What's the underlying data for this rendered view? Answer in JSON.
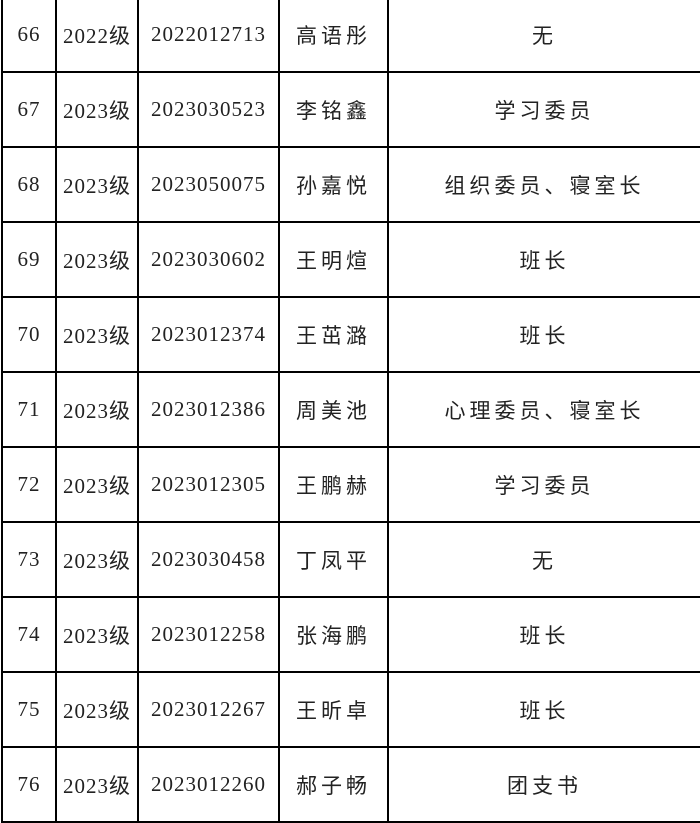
{
  "rows": [
    {
      "no": "66",
      "grade": "2022级",
      "id": "2022012713",
      "name": "高语彤",
      "role": "无"
    },
    {
      "no": "67",
      "grade": "2023级",
      "id": "2023030523",
      "name": "李铭鑫",
      "role": "学习委员"
    },
    {
      "no": "68",
      "grade": "2023级",
      "id": "2023050075",
      "name": "孙嘉悦",
      "role": "组织委员、寝室长"
    },
    {
      "no": "69",
      "grade": "2023级",
      "id": "2023030602",
      "name": "王明煊",
      "role": "班长"
    },
    {
      "no": "70",
      "grade": "2023级",
      "id": "2023012374",
      "name": "王茁潞",
      "role": "班长"
    },
    {
      "no": "71",
      "grade": "2023级",
      "id": "2023012386",
      "name": "周美池",
      "role": "心理委员、寝室长"
    },
    {
      "no": "72",
      "grade": "2023级",
      "id": "2023012305",
      "name": "王鹏赫",
      "role": "学习委员"
    },
    {
      "no": "73",
      "grade": "2023级",
      "id": "2023030458",
      "name": "丁凤平",
      "role": "无"
    },
    {
      "no": "74",
      "grade": "2023级",
      "id": "2023012258",
      "name": "张海鹏",
      "role": "班长"
    },
    {
      "no": "75",
      "grade": "2023级",
      "id": "2023012267",
      "name": "王昕卓",
      "role": "班长"
    },
    {
      "no": "76",
      "grade": "2023级",
      "id": "2023012260",
      "name": "郝子畅",
      "role": "团支书"
    }
  ]
}
